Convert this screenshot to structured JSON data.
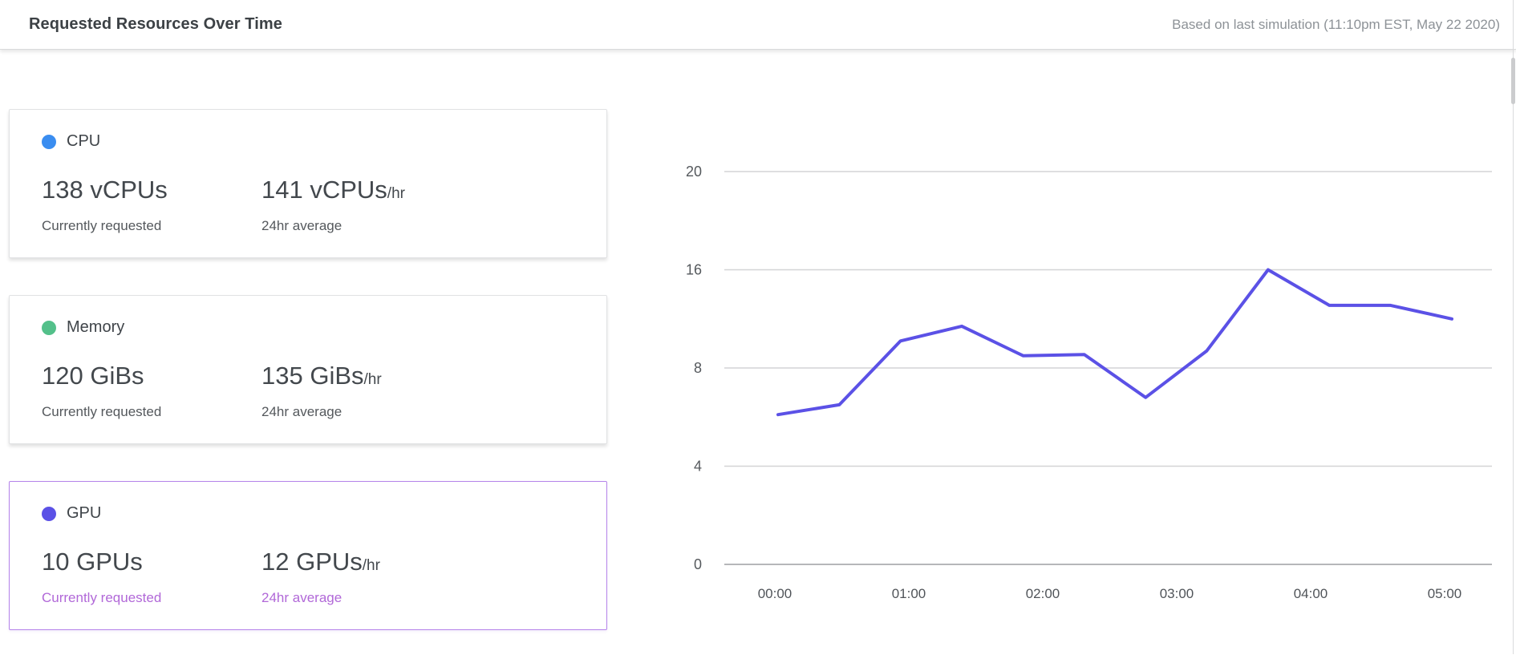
{
  "header": {
    "title": "Requested Resources Over Time",
    "subtitle": "Based on last simulation (11:10pm EST, May 22 2020)"
  },
  "cards": [
    {
      "id": "cpu",
      "label": "CPU",
      "dot_color": "#3a8df0",
      "current_value": "138 vCPUs",
      "current_caption": "Currently requested",
      "average_value": "141 vCPUs",
      "average_suffix": "/hr",
      "average_caption": "24hr average",
      "selected": false
    },
    {
      "id": "memory",
      "label": "Memory",
      "dot_color": "#53c08a",
      "current_value": "120 GiBs",
      "current_caption": "Currently requested",
      "average_value": "135 GiBs",
      "average_suffix": "/hr",
      "average_caption": "24hr average",
      "selected": false
    },
    {
      "id": "gpu",
      "label": "GPU",
      "dot_color": "#5b51e6",
      "current_value": "10 GPUs",
      "current_caption": "Currently requested",
      "average_value": "12 GPUs",
      "average_suffix": "/hr",
      "average_caption": "24hr average",
      "selected": true
    }
  ],
  "colors": {
    "selected_card_border": "#b583ea",
    "selected_caption": "#b168d8",
    "series_line": "#5b51e6",
    "gridline": "#d3d4d6",
    "axis_baseline": "#b6b7b9",
    "tick_label": "#55595d"
  },
  "chart_data": {
    "type": "line",
    "title": "Requested Resources Over Time",
    "xlabel": "",
    "ylabel": "",
    "grid": "horizontal",
    "legend": "none",
    "y_ticks": [
      20,
      16,
      8,
      4,
      0
    ],
    "x_ticks": [
      "00:00",
      "01:00",
      "02:00",
      "03:00",
      "04:00",
      "05:00"
    ],
    "series": [
      {
        "name": "GPU",
        "color": "#5b51e6",
        "x": [
          "00:00",
          "00:30",
          "01:00",
          "01:30",
          "02:00",
          "02:30",
          "03:00",
          "03:30",
          "04:00",
          "04:30",
          "05:00",
          "05:30"
        ],
        "values": [
          6.1,
          6.5,
          10.2,
          11.4,
          9.0,
          9.1,
          6.8,
          9.4,
          16,
          13.1,
          13.1,
          12
        ]
      }
    ]
  }
}
